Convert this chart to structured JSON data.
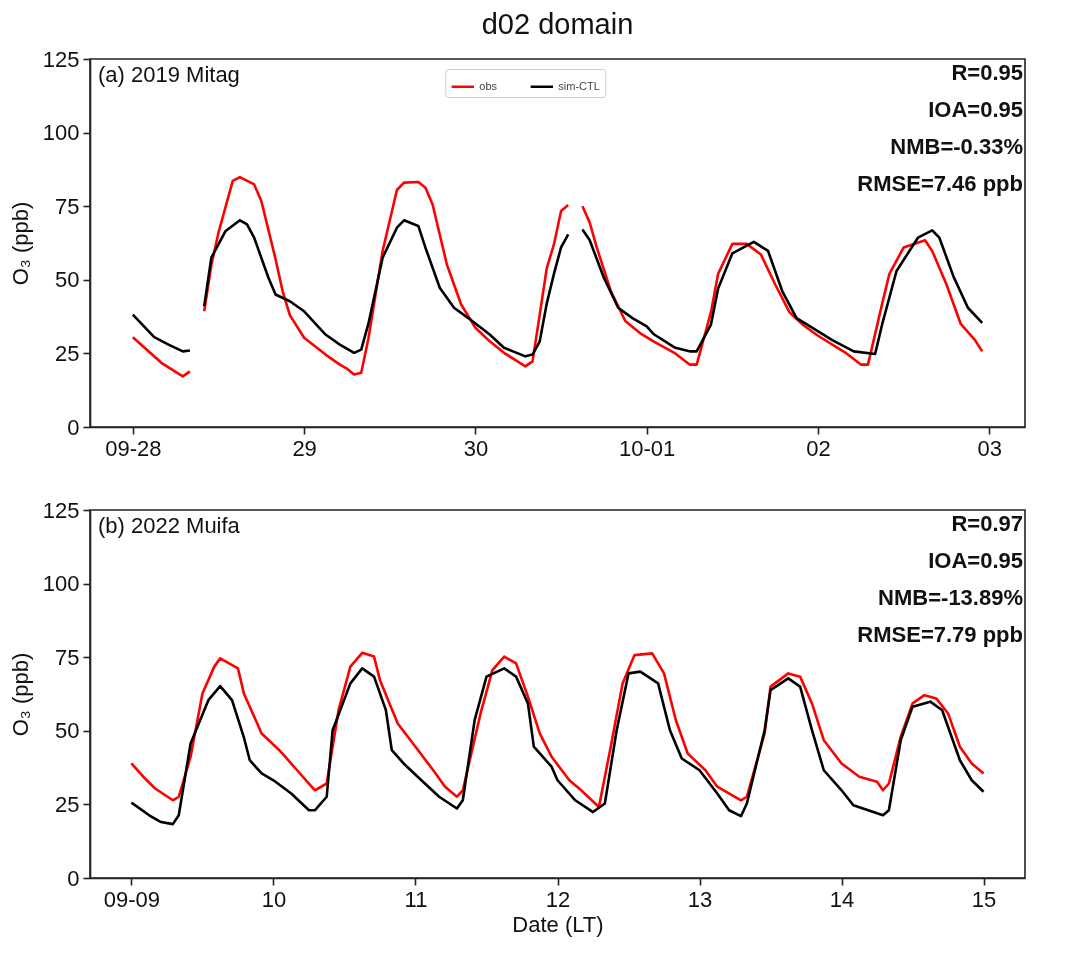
{
  "chart_data": [
    {
      "type": "line",
      "title": "d02 domain",
      "ylabel": "O₃ (ppb)",
      "annotations": [
        "(a) 2019 Mitag",
        "R=0.95",
        "IOA=0.95",
        "NMB=-0.33%",
        "RMSE=7.46 ppb"
      ],
      "xlim": [
        "2019-09-27T18:00",
        "2019-10-03T05:00"
      ],
      "xticks": [
        {
          "value": "2019-09-28",
          "label": "09-28"
        },
        {
          "value": "2019-09-29",
          "label": "29"
        },
        {
          "value": "2019-09-30",
          "label": "30"
        },
        {
          "value": "2019-10-01",
          "label": "10-01"
        },
        {
          "value": "2019-10-02",
          "label": "02"
        },
        {
          "value": "2019-10-03",
          "label": "03"
        }
      ],
      "ylim": [
        0,
        125
      ],
      "yticks": [
        0,
        25,
        50,
        75,
        100,
        125
      ],
      "grid": false,
      "legend": "top",
      "line_style": "solid",
      "marker": "none",
      "series": [
        {
          "name": "obs",
          "color": "#ff0000",
          "x": [
            "2019-09-28T00:00",
            "2019-09-28T04:00",
            "2019-09-28T07:00",
            "2019-09-28T08:00",
            "2019-09-28T09:00",
            "2019-09-28T10:00",
            "2019-09-28T11:00",
            "2019-09-28T12:00",
            "2019-09-28T14:00",
            "2019-09-28T15:00",
            "2019-09-28T17:00",
            "2019-09-28T18:00",
            "2019-09-28T20:00",
            "2019-09-28T21:00",
            "2019-09-28T22:00",
            "2019-09-29T00:00",
            "2019-09-29T03:00",
            "2019-09-29T05:00",
            "2019-09-29T06:00",
            "2019-09-29T07:00",
            "2019-09-29T08:00",
            "2019-09-29T09:00",
            "2019-09-29T11:00",
            "2019-09-29T13:00",
            "2019-09-29T14:00",
            "2019-09-29T16:00",
            "2019-09-29T17:00",
            "2019-09-29T18:00",
            "2019-09-29T20:00",
            "2019-09-29T22:00",
            "2019-09-30T00:00",
            "2019-09-30T02:00",
            "2019-09-30T04:00",
            "2019-09-30T07:00",
            "2019-09-30T08:00",
            "2019-09-30T09:00",
            "2019-09-30T10:00",
            "2019-09-30T11:00",
            "2019-09-30T12:00",
            "2019-09-30T13:00",
            "2019-09-30T14:00",
            "2019-09-30T15:00",
            "2019-09-30T16:00",
            "2019-09-30T17:00",
            "2019-09-30T19:00",
            "2019-09-30T21:00",
            "2019-09-30T23:00",
            "2019-10-01T01:00",
            "2019-10-01T04:00",
            "2019-10-01T06:00",
            "2019-10-01T07:00",
            "2019-10-01T09:00",
            "2019-10-01T10:00",
            "2019-10-01T12:00",
            "2019-10-01T14:00",
            "2019-10-01T16:00",
            "2019-10-01T18:00",
            "2019-10-01T20:00",
            "2019-10-01T22:00",
            "2019-10-02T00:00",
            "2019-10-02T04:00",
            "2019-10-02T06:00",
            "2019-10-02T07:00",
            "2019-10-02T09:00",
            "2019-10-02T10:00",
            "2019-10-02T12:00",
            "2019-10-02T15:00",
            "2019-10-02T16:00",
            "2019-10-02T18:00",
            "2019-10-02T20:00",
            "2019-10-02T22:00",
            "2019-10-02T23:00"
          ],
          "values": [
            30.5,
            21.8,
            17.2,
            18.9,
            null,
            39.3,
            55,
            66,
            83.6,
            84.9,
            82.4,
            76.8,
            57,
            46,
            38,
            30.3,
            24.6,
            21.2,
            19.8,
            17.8,
            18.4,
            30,
            59.8,
            80.5,
            83,
            83.2,
            81.3,
            75.6,
            55.2,
            41.6,
            33.7,
            29.1,
            25.2,
            20.6,
            22.3,
            38,
            54,
            62,
            73.4,
            75.4,
            null,
            75,
            69.5,
            61,
            46,
            36,
            32,
            29,
            25,
            21.2,
            21.2,
            39,
            52,
            62.2,
            62.2,
            58.6,
            48.4,
            39,
            34.5,
            31,
            25,
            21.2,
            21.2,
            42,
            52,
            61,
            63.4,
            59.8,
            48.4,
            35,
            29.5,
            25.7
          ]
        },
        {
          "name": "sim-CTL",
          "color": "#000000",
          "x": [
            "2019-09-28T00:00",
            "2019-09-28T03:00",
            "2019-09-28T05:00",
            "2019-09-28T07:00",
            "2019-09-28T08:00",
            "2019-09-28T09:00",
            "2019-09-28T10:00",
            "2019-09-28T11:00",
            "2019-09-28T13:00",
            "2019-09-28T15:00",
            "2019-09-28T16:00",
            "2019-09-28T17:00",
            "2019-09-28T19:00",
            "2019-09-28T20:00",
            "2019-09-28T22:00",
            "2019-09-29T00:00",
            "2019-09-29T03:00",
            "2019-09-29T05:00",
            "2019-09-29T07:00",
            "2019-09-29T08:00",
            "2019-09-29T09:00",
            "2019-09-29T11:00",
            "2019-09-29T13:00",
            "2019-09-29T14:00",
            "2019-09-29T16:00",
            "2019-09-29T17:00",
            "2019-09-29T19:00",
            "2019-09-29T21:00",
            "2019-09-29T23:00",
            "2019-09-30T02:00",
            "2019-09-30T04:00",
            "2019-09-30T07:00",
            "2019-09-30T08:00",
            "2019-09-30T09:00",
            "2019-09-30T10:00",
            "2019-09-30T11:00",
            "2019-09-30T12:00",
            "2019-09-30T13:00",
            "2019-09-30T14:00",
            "2019-09-30T15:00",
            "2019-09-30T16:00",
            "2019-09-30T18:00",
            "2019-09-30T20:00",
            "2019-09-30T22:00",
            "2019-10-01T00:00",
            "2019-10-01T01:00",
            "2019-10-01T04:00",
            "2019-10-01T06:00",
            "2019-10-01T07:00",
            "2019-10-01T09:00",
            "2019-10-01T10:00",
            "2019-10-01T12:00",
            "2019-10-01T15:00",
            "2019-10-01T17:00",
            "2019-10-01T19:00",
            "2019-10-01T21:00",
            "2019-10-01T23:00",
            "2019-10-02T02:00",
            "2019-10-02T05:00",
            "2019-10-02T08:00",
            "2019-10-02T09:00",
            "2019-10-02T11:00",
            "2019-10-02T14:00",
            "2019-10-02T16:00",
            "2019-10-02T17:00",
            "2019-10-02T19:00",
            "2019-10-02T21:00",
            "2019-10-02T23:00"
          ],
          "values": [
            38.2,
            30.5,
            28,
            25.7,
            26,
            null,
            41,
            57.5,
            66.6,
            70.2,
            68.8,
            64.3,
            50.7,
            45,
            42.7,
            39.3,
            31.4,
            28,
            25.2,
            26.3,
            35,
            57.5,
            67.7,
            70.2,
            68.3,
            60.9,
            47.3,
            40.5,
            37,
            31.4,
            26.9,
            24,
            24.6,
            29,
            42,
            52,
            61,
            65.4,
            null,
            67.1,
            63.5,
            50.7,
            40.5,
            37,
            34.2,
            31.5,
            26.9,
            25.7,
            25.7,
            34.8,
            47,
            59,
            62.9,
            59.8,
            46.1,
            37,
            34,
            29.5,
            25.7,
            24.8,
            35,
            53,
            64.3,
            66.8,
            64.3,
            51,
            40.5,
            35.4
          ]
        }
      ]
    },
    {
      "type": "line",
      "xlabel": "Date (LT)",
      "ylabel": "O₃ (ppb)",
      "annotations": [
        "(b) 2022 Muifa",
        "R=0.97",
        "IOA=0.95",
        "NMB=-13.89%",
        "RMSE=7.79 ppb"
      ],
      "xlim": [
        "2022-09-08T17:00",
        "2022-09-15T07:00"
      ],
      "xticks": [
        {
          "value": "2022-09-09",
          "label": "09-09"
        },
        {
          "value": "2022-09-10",
          "label": "10"
        },
        {
          "value": "2022-09-11",
          "label": "11"
        },
        {
          "value": "2022-09-12",
          "label": "12"
        },
        {
          "value": "2022-09-13",
          "label": "13"
        },
        {
          "value": "2022-09-14",
          "label": "14"
        },
        {
          "value": "2022-09-15",
          "label": "15"
        }
      ],
      "ylim": [
        0,
        125
      ],
      "yticks": [
        0,
        25,
        50,
        75,
        100,
        125
      ],
      "grid": false,
      "legend": "top",
      "line_style": "solid",
      "marker": "none",
      "series": [
        {
          "name": "obs",
          "color": "#ff0000",
          "x": [
            "2022-09-09T00:00",
            "2022-09-09T02:00",
            "2022-09-09T04:00",
            "2022-09-09T07:00",
            "2022-09-09T08:00",
            "2022-09-09T10:00",
            "2022-09-09T12:00",
            "2022-09-09T14:00",
            "2022-09-09T15:00",
            "2022-09-09T18:00",
            "2022-09-09T19:00",
            "2022-09-09T22:00",
            "2022-09-10T01:00",
            "2022-09-10T04:00",
            "2022-09-10T07:00",
            "2022-09-10T09:00",
            "2022-09-10T11:00",
            "2022-09-10T13:00",
            "2022-09-10T15:00",
            "2022-09-10T17:00",
            "2022-09-10T18:00",
            "2022-09-10T21:00",
            "2022-09-11T00:00",
            "2022-09-11T03:00",
            "2022-09-11T05:00",
            "2022-09-11T07:00",
            "2022-09-11T08:00",
            "2022-09-11T11:00",
            "2022-09-11T13:00",
            "2022-09-11T15:00",
            "2022-09-11T17:00",
            "2022-09-11T19:00",
            "2022-09-11T21:00",
            "2022-09-11T23:00",
            "2022-09-12T02:00",
            "2022-09-12T04:00",
            "2022-09-12T07:00",
            "2022-09-12T09:00",
            "2022-09-12T11:00",
            "2022-09-12T13:00",
            "2022-09-12T16:00",
            "2022-09-12T18:00",
            "2022-09-12T20:00",
            "2022-09-12T22:00",
            "2022-09-13T01:00",
            "2022-09-13T03:00",
            "2022-09-13T07:00",
            "2022-09-13T08:00",
            "2022-09-13T11:00",
            "2022-09-13T12:00",
            "2022-09-13T15:00",
            "2022-09-13T17:00",
            "2022-09-13T19:00",
            "2022-09-13T21:00",
            "2022-09-14T00:00",
            "2022-09-14T03:00",
            "2022-09-14T06:00",
            "2022-09-14T07:00",
            "2022-09-14T08:00",
            "2022-09-14T10:00",
            "2022-09-14T12:00",
            "2022-09-14T14:00",
            "2022-09-14T16:00",
            "2022-09-14T18:00",
            "2022-09-14T20:00",
            "2022-09-14T22:00",
            "2022-09-15T00:00"
          ],
          "values": [
            38.9,
            34.4,
            30.4,
            26.4,
            27.6,
            41.2,
            62.7,
            71.8,
            74.6,
            71.2,
            62.7,
            49.1,
            43.4,
            36.6,
            29.8,
            32.1,
            57,
            71.8,
            76.5,
            75.2,
            67.2,
            52.5,
            44.6,
            36.6,
            31,
            27.6,
            29.8,
            55.9,
            70.6,
            75.2,
            72.9,
            61.6,
            49.1,
            41.2,
            33.2,
            29.8,
            24.1,
            44.6,
            66.1,
            75.7,
            76.3,
            69.5,
            53.6,
            42.3,
            36.6,
            31,
            26.4,
            27.6,
            49.1,
            65,
            69.5,
            68.4,
            59.3,
            46.8,
            38.9,
            34.4,
            32.7,
            29.8,
            32.1,
            48,
            59.3,
            62.1,
            61,
            55.9,
            44.6,
            38.9,
            35.5
          ]
        },
        {
          "name": "sim-CTL",
          "color": "#000000",
          "x": [
            "2022-09-09T00:00",
            "2022-09-09T03:00",
            "2022-09-09T05:00",
            "2022-09-09T07:00",
            "2022-09-09T08:00",
            "2022-09-09T10:00",
            "2022-09-09T13:00",
            "2022-09-09T15:00",
            "2022-09-09T17:00",
            "2022-09-09T19:00",
            "2022-09-09T20:00",
            "2022-09-09T22:00",
            "2022-09-10T00:00",
            "2022-09-10T03:00",
            "2022-09-10T06:00",
            "2022-09-10T07:00",
            "2022-09-10T09:00",
            "2022-09-10T10:00",
            "2022-09-10T13:00",
            "2022-09-10T15:00",
            "2022-09-10T17:00",
            "2022-09-10T19:00",
            "2022-09-10T20:00",
            "2022-09-10T22:00",
            "2022-09-11T01:00",
            "2022-09-11T04:00",
            "2022-09-11T07:00",
            "2022-09-11T08:00",
            "2022-09-11T10:00",
            "2022-09-11T12:00",
            "2022-09-11T15:00",
            "2022-09-11T17:00",
            "2022-09-11T19:00",
            "2022-09-11T20:00",
            "2022-09-11T23:00",
            "2022-09-12T00:00",
            "2022-09-12T03:00",
            "2022-09-12T06:00",
            "2022-09-12T08:00",
            "2022-09-12T10:00",
            "2022-09-12T12:00",
            "2022-09-12T14:00",
            "2022-09-12T17:00",
            "2022-09-12T19:00",
            "2022-09-12T21:00",
            "2022-09-13T00:00",
            "2022-09-13T03:00",
            "2022-09-13T05:00",
            "2022-09-13T07:00",
            "2022-09-13T08:00",
            "2022-09-13T11:00",
            "2022-09-13T12:00",
            "2022-09-13T15:00",
            "2022-09-13T17:00",
            "2022-09-13T19:00",
            "2022-09-13T21:00",
            "2022-09-14T00:00",
            "2022-09-14T02:00",
            "2022-09-14T07:00",
            "2022-09-14T08:00",
            "2022-09-14T10:00",
            "2022-09-14T12:00",
            "2022-09-14T15:00",
            "2022-09-14T17:00",
            "2022-09-14T20:00",
            "2022-09-14T22:00",
            "2022-09-15T00:00"
          ],
          "values": [
            25.6,
            21.3,
            19,
            18.3,
            21.3,
            45.7,
            60.4,
            65.2,
            60.4,
            47.8,
            40,
            35.5,
            33.2,
            28.7,
            23,
            23,
            27.6,
            50.2,
            66.1,
            71.2,
            68.4,
            57,
            43.4,
            38.9,
            33.2,
            27.6,
            23.6,
            26.4,
            53.6,
            68.4,
            71.2,
            68.4,
            59.3,
            44.6,
            37.8,
            33.2,
            26.4,
            22.4,
            25.3,
            50.2,
            69.5,
            70.1,
            66.1,
            50.2,
            40.6,
            36.6,
            28.7,
            23,
            21,
            25.3,
            50.2,
            63.8,
            67.8,
            65,
            50.2,
            36.6,
            29.8,
            24.7,
            21.3,
            23,
            46.8,
            58.2,
            59.9,
            57,
            40,
            33.2,
            29.3
          ]
        }
      ]
    }
  ]
}
